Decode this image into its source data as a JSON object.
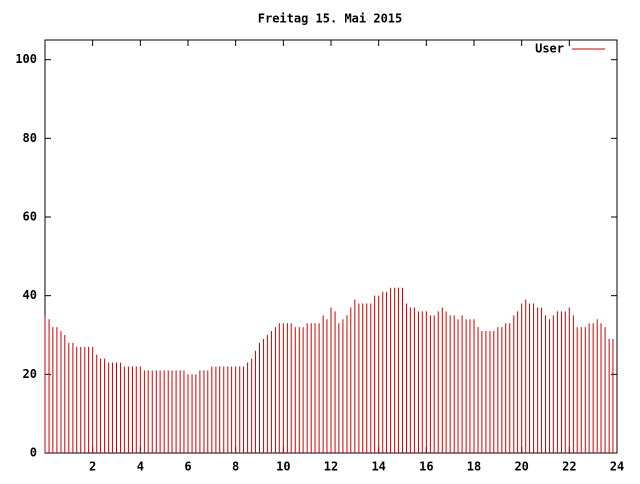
{
  "chart_data": {
    "type": "impulse",
    "title": "Freitag 15. Mai 2015",
    "series": [
      {
        "name": "User",
        "color": "#cc0000",
        "x": [
          0,
          0.17,
          0.33,
          0.5,
          0.67,
          0.83,
          1,
          1.17,
          1.33,
          1.5,
          1.67,
          1.83,
          2,
          2.17,
          2.33,
          2.5,
          2.67,
          2.83,
          3,
          3.17,
          3.33,
          3.5,
          3.67,
          3.83,
          4,
          4.17,
          4.33,
          4.5,
          4.67,
          4.83,
          5,
          5.17,
          5.33,
          5.5,
          5.67,
          5.83,
          6,
          6.17,
          6.33,
          6.5,
          6.67,
          6.83,
          7,
          7.17,
          7.33,
          7.5,
          7.67,
          7.83,
          8,
          8.17,
          8.33,
          8.5,
          8.67,
          8.83,
          9,
          9.17,
          9.33,
          9.5,
          9.67,
          9.83,
          10,
          10.17,
          10.33,
          10.5,
          10.67,
          10.83,
          11,
          11.17,
          11.33,
          11.5,
          11.67,
          11.83,
          12,
          12.17,
          12.33,
          12.5,
          12.67,
          12.83,
          13,
          13.17,
          13.33,
          13.5,
          13.67,
          13.83,
          14,
          14.17,
          14.33,
          14.5,
          14.67,
          14.83,
          15,
          15.17,
          15.33,
          15.5,
          15.67,
          15.83,
          16,
          16.17,
          16.33,
          16.5,
          16.67,
          16.83,
          17,
          17.17,
          17.33,
          17.5,
          17.67,
          17.83,
          18,
          18.17,
          18.33,
          18.5,
          18.67,
          18.83,
          19,
          19.17,
          19.33,
          19.5,
          19.67,
          19.83,
          20,
          20.17,
          20.33,
          20.5,
          20.67,
          20.83,
          21,
          21.17,
          21.33,
          21.5,
          21.67,
          21.83,
          22,
          22.17,
          22.33,
          22.5,
          22.67,
          22.83,
          23,
          23.17,
          23.33,
          23.5,
          23.67,
          23.83
        ],
        "values": [
          35,
          34,
          32,
          32,
          31,
          30,
          28,
          28,
          27,
          27,
          27,
          27,
          27,
          25,
          24,
          24,
          23,
          23,
          23,
          23,
          22,
          22,
          22,
          22,
          22,
          21,
          21,
          21,
          21,
          21,
          21,
          21,
          21,
          21,
          21,
          21,
          20,
          20,
          20,
          21,
          21,
          21,
          22,
          22,
          22,
          22,
          22,
          22,
          22,
          22,
          22,
          23,
          24,
          26,
          28,
          29,
          30,
          31,
          32,
          33,
          33,
          33,
          33,
          32,
          32,
          32,
          33,
          33,
          33,
          33,
          35,
          34,
          37,
          36,
          33,
          34,
          35,
          37,
          39,
          38,
          38,
          38,
          38,
          40,
          40,
          41,
          41,
          42,
          42,
          42,
          42,
          38,
          37,
          37,
          36,
          36,
          36,
          35,
          35,
          36,
          37,
          36,
          35,
          35,
          34,
          35,
          34,
          34,
          34,
          32,
          31,
          31,
          31,
          31,
          32,
          32,
          33,
          33,
          35,
          36,
          38,
          39,
          38,
          38,
          37,
          37,
          35,
          34,
          35,
          36,
          36,
          36,
          37,
          35,
          32,
          32,
          32,
          33,
          33,
          34,
          33,
          32,
          29,
          29
        ]
      }
    ],
    "xlim": [
      0,
      24
    ],
    "xticks": [
      2,
      4,
      6,
      8,
      10,
      12,
      14,
      16,
      18,
      20,
      22,
      24
    ],
    "ylim": [
      0,
      105
    ],
    "yticks": [
      0,
      20,
      40,
      60,
      80,
      100
    ],
    "legend": "upper right"
  }
}
